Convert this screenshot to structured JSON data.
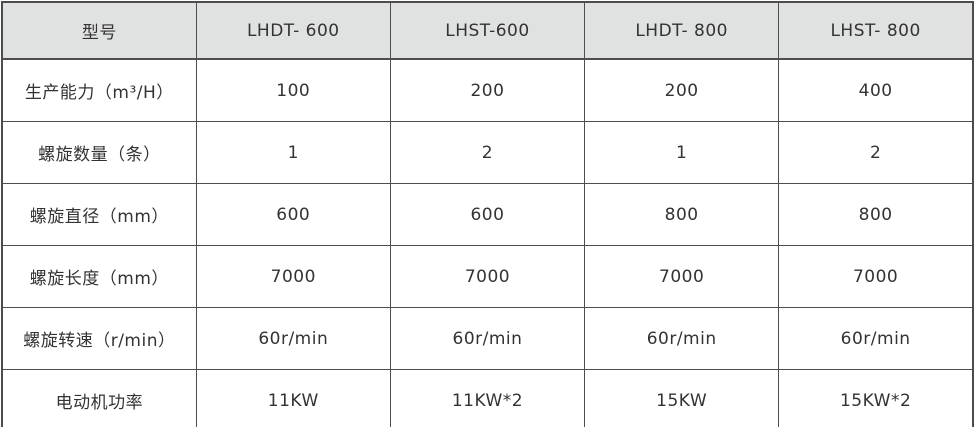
{
  "chart_data": {
    "type": "table",
    "title": "",
    "columns": [
      "型号",
      "LHDT- 600",
      "LHST-600",
      "LHDT- 800",
      "LHST- 800"
    ],
    "rows": [
      {
        "label": "生产能力（m³/H）",
        "values": [
          "100",
          "200",
          "200",
          "400"
        ]
      },
      {
        "label": "螺旋数量（条）",
        "values": [
          "1",
          "2",
          "1",
          "2"
        ]
      },
      {
        "label": "螺旋直径（mm）",
        "values": [
          "600",
          "600",
          "800",
          "800"
        ]
      },
      {
        "label": "螺旋长度（mm）",
        "values": [
          "7000",
          "7000",
          "7000",
          "7000"
        ]
      },
      {
        "label": "螺旋转速（r/min）",
        "values": [
          "60r/min",
          "60r/min",
          "60r/min",
          "60r/min"
        ]
      },
      {
        "label": "电动机功率",
        "values": [
          "11KW",
          "11KW*2",
          "15KW",
          "15KW*2"
        ]
      }
    ]
  },
  "colors": {
    "header_bg": "#e0e2e1",
    "border": "#4f4d4d",
    "text": "#333333",
    "background": "#ffffff"
  }
}
